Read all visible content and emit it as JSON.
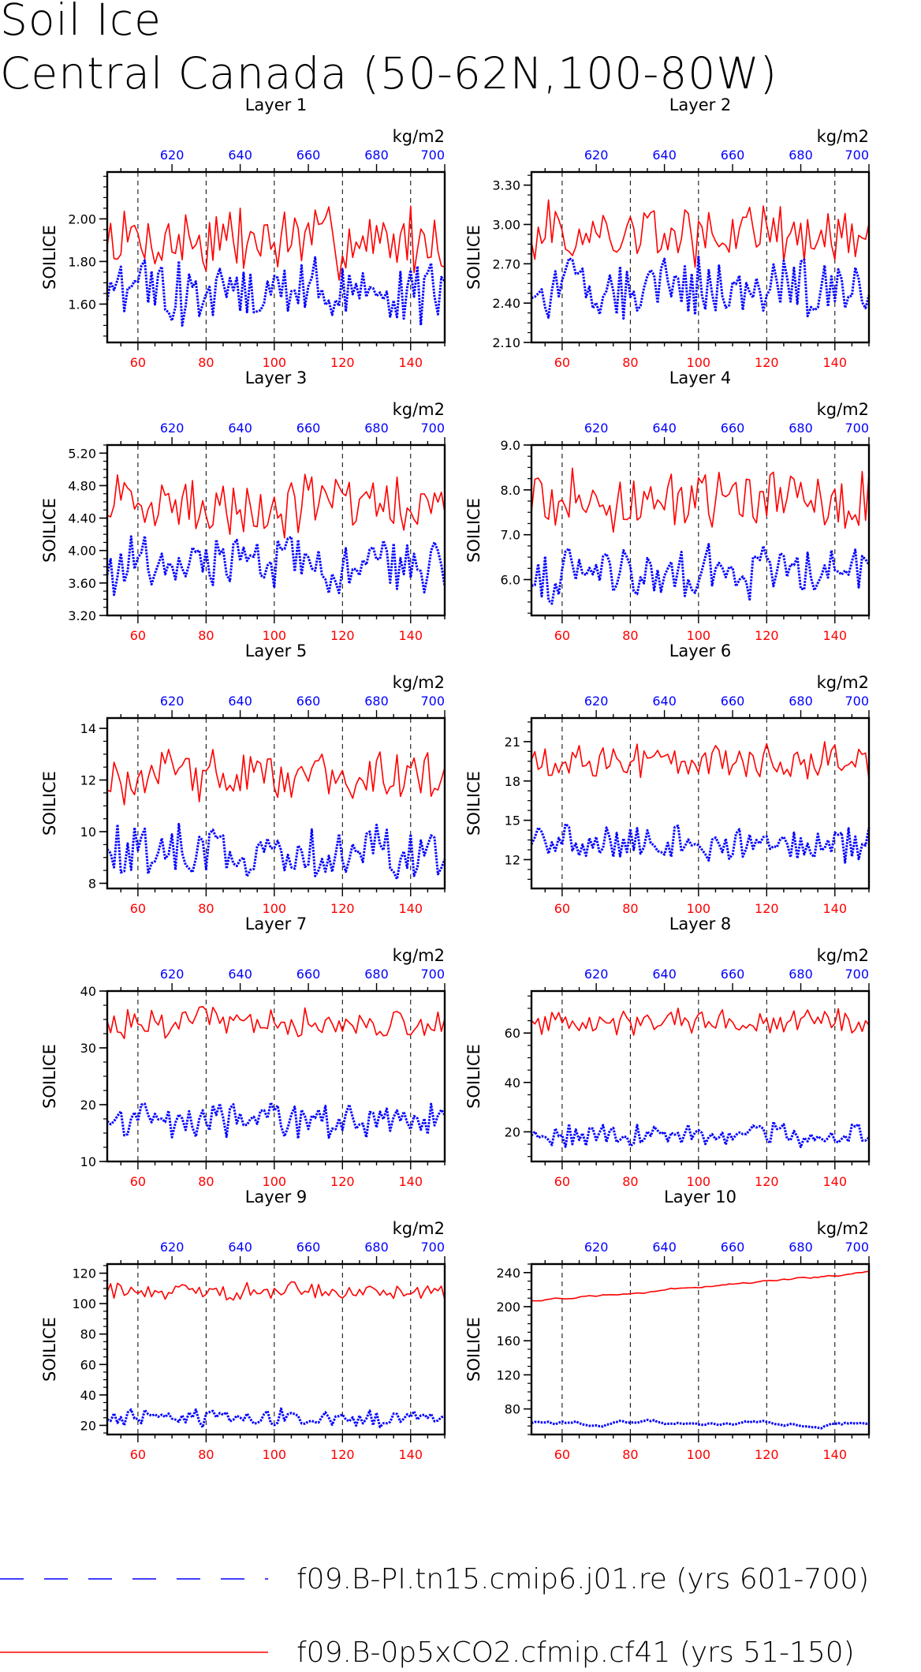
{
  "title": "Soil Ice",
  "subtitle": "Central Canada (50-62N,100-80W)",
  "units_label": "kg/m2",
  "ylabel": "SOILICE",
  "colors": {
    "red": "#ff0000",
    "blue": "#0000ff"
  },
  "legend": [
    {
      "label": "f09.B-PI.tn15.cmip6.j01.re (yrs 601-700)",
      "color": "#0000ff",
      "style": "dashed"
    },
    {
      "label": "f09.B-0p5xCO2.cfmip.cf41 (yrs 51-150)",
      "color": "#ff0000",
      "style": "solid"
    }
  ],
  "chart_data": [
    {
      "type": "line",
      "title": "Layer 1",
      "xlabel_units": "kg/m2",
      "ylabel": "SOILICE",
      "x_bottom_ticks": [
        60,
        80,
        100,
        120,
        140
      ],
      "x_top_ticks": [
        620,
        640,
        660,
        680,
        700
      ],
      "xlim_bottom": [
        51,
        150
      ],
      "xlim_top": [
        601,
        700
      ],
      "ylim": [
        1.42,
        2.22
      ],
      "yticks": [
        "1.60",
        "1.80",
        "2.00"
      ],
      "ytick_values": [
        1.6,
        1.8,
        2.0
      ],
      "series": [
        {
          "name": "f09.B-0p5xCO2.cfmip.cf41 (yrs 51-150)",
          "color": "#ff0000",
          "style": "solid",
          "mean": 1.9,
          "amp": 0.14
        },
        {
          "name": "f09.B-PI.tn15.cmip6.j01.re (yrs 601-700)",
          "color": "#0000ff",
          "style": "dotted",
          "mean": 1.66,
          "amp": 0.13
        }
      ]
    },
    {
      "type": "line",
      "title": "Layer 2",
      "xlabel_units": "kg/m2",
      "ylabel": "SOILICE",
      "x_bottom_ticks": [
        60,
        80,
        100,
        120,
        140
      ],
      "x_top_ticks": [
        620,
        640,
        660,
        680,
        700
      ],
      "xlim_bottom": [
        51,
        150
      ],
      "xlim_top": [
        601,
        700
      ],
      "ylim": [
        2.1,
        3.4
      ],
      "yticks": [
        "2.10",
        "2.40",
        "2.70",
        "3.00",
        "3.30"
      ],
      "ytick_values": [
        2.1,
        2.4,
        2.7,
        3.0,
        3.3
      ],
      "series": [
        {
          "name": "f09.B-0p5xCO2.cfmip.cf41 (yrs 51-150)",
          "color": "#ff0000",
          "style": "solid",
          "mean": 2.92,
          "amp": 0.2
        },
        {
          "name": "f09.B-PI.tn15.cmip6.j01.re (yrs 601-700)",
          "color": "#0000ff",
          "style": "dotted",
          "mean": 2.52,
          "amp": 0.2
        }
      ]
    },
    {
      "type": "line",
      "title": "Layer 3",
      "xlabel_units": "kg/m2",
      "ylabel": "SOILICE",
      "x_bottom_ticks": [
        60,
        80,
        100,
        120,
        140
      ],
      "x_top_ticks": [
        620,
        640,
        660,
        680,
        700
      ],
      "xlim_bottom": [
        51,
        150
      ],
      "xlim_top": [
        601,
        700
      ],
      "ylim": [
        3.2,
        5.3
      ],
      "yticks": [
        "3.20",
        "3.60",
        "4.00",
        "4.40",
        "4.80",
        "5.20"
      ],
      "ytick_values": [
        3.2,
        3.6,
        4.0,
        4.4,
        4.8,
        5.2
      ],
      "series": [
        {
          "name": "f09.B-0p5xCO2.cfmip.cf41 (yrs 51-150)",
          "color": "#ff0000",
          "style": "solid",
          "mean": 4.55,
          "amp": 0.32
        },
        {
          "name": "f09.B-PI.tn15.cmip6.j01.re (yrs 601-700)",
          "color": "#0000ff",
          "style": "dotted",
          "mean": 3.85,
          "amp": 0.3
        }
      ]
    },
    {
      "type": "line",
      "title": "Layer 4",
      "xlabel_units": "kg/m2",
      "ylabel": "SOILICE",
      "x_bottom_ticks": [
        60,
        80,
        100,
        120,
        140
      ],
      "x_top_ticks": [
        620,
        640,
        660,
        680,
        700
      ],
      "xlim_bottom": [
        51,
        150
      ],
      "xlim_top": [
        601,
        700
      ],
      "ylim": [
        5.2,
        9.0
      ],
      "yticks": [
        "6.0",
        "7.0",
        "8.0",
        "9.0"
      ],
      "ytick_values": [
        6.0,
        7.0,
        8.0,
        9.0
      ],
      "series": [
        {
          "name": "f09.B-0p5xCO2.cfmip.cf41 (yrs 51-150)",
          "color": "#ff0000",
          "style": "solid",
          "mean": 7.75,
          "amp": 0.55
        },
        {
          "name": "f09.B-PI.tn15.cmip6.j01.re (yrs 601-700)",
          "color": "#0000ff",
          "style": "dotted",
          "mean": 6.15,
          "amp": 0.5
        }
      ]
    },
    {
      "type": "line",
      "title": "Layer 5",
      "xlabel_units": "kg/m2",
      "ylabel": "SOILICE",
      "x_bottom_ticks": [
        60,
        80,
        100,
        120,
        140
      ],
      "x_top_ticks": [
        620,
        640,
        660,
        680,
        700
      ],
      "xlim_bottom": [
        51,
        150
      ],
      "xlim_top": [
        601,
        700
      ],
      "ylim": [
        7.8,
        14.4
      ],
      "yticks": [
        "8",
        "10",
        "12",
        "14"
      ],
      "ytick_values": [
        8,
        10,
        12,
        14
      ],
      "series": [
        {
          "name": "f09.B-0p5xCO2.cfmip.cf41 (yrs 51-150)",
          "color": "#ff0000",
          "style": "solid",
          "mean": 12.1,
          "amp": 0.9
        },
        {
          "name": "f09.B-PI.tn15.cmip6.j01.re (yrs 601-700)",
          "color": "#0000ff",
          "style": "dotted",
          "mean": 9.2,
          "amp": 0.85
        }
      ]
    },
    {
      "type": "line",
      "title": "Layer 6",
      "xlabel_units": "kg/m2",
      "ylabel": "SOILICE",
      "x_bottom_ticks": [
        60,
        80,
        100,
        120,
        140
      ],
      "x_top_ticks": [
        620,
        640,
        660,
        680,
        700
      ],
      "xlim_bottom": [
        51,
        150
      ],
      "xlim_top": [
        601,
        700
      ],
      "ylim": [
        9.8,
        22.8
      ],
      "yticks": [
        "12",
        "15",
        "18",
        "21"
      ],
      "ytick_values": [
        12,
        15,
        18,
        21
      ],
      "series": [
        {
          "name": "f09.B-0p5xCO2.cfmip.cf41 (yrs 51-150)",
          "color": "#ff0000",
          "style": "solid",
          "mean": 19.4,
          "amp": 1.2
        },
        {
          "name": "f09.B-PI.tn15.cmip6.j01.re (yrs 601-700)",
          "color": "#0000ff",
          "style": "dotted",
          "mean": 13.1,
          "amp": 1.3
        }
      ]
    },
    {
      "type": "line",
      "title": "Layer 7",
      "xlabel_units": "kg/m2",
      "ylabel": "SOILICE",
      "x_bottom_ticks": [
        60,
        80,
        100,
        120,
        140
      ],
      "x_top_ticks": [
        620,
        640,
        660,
        680,
        700
      ],
      "xlim_bottom": [
        51,
        150
      ],
      "xlim_top": [
        601,
        700
      ],
      "ylim": [
        10,
        40
      ],
      "yticks": [
        "10",
        "20",
        "30",
        "40"
      ],
      "ytick_values": [
        10,
        20,
        30,
        40
      ],
      "series": [
        {
          "name": "f09.B-0p5xCO2.cfmip.cf41 (yrs 51-150)",
          "color": "#ff0000",
          "style": "solid",
          "mean": 34.5,
          "amp": 2.3
        },
        {
          "name": "f09.B-PI.tn15.cmip6.j01.re (yrs 601-700)",
          "color": "#0000ff",
          "style": "dotted",
          "mean": 17.2,
          "amp": 2.8
        }
      ]
    },
    {
      "type": "line",
      "title": "Layer 8",
      "xlabel_units": "kg/m2",
      "ylabel": "SOILICE",
      "x_bottom_ticks": [
        60,
        80,
        100,
        120,
        140
      ],
      "x_top_ticks": [
        620,
        640,
        660,
        680,
        700
      ],
      "xlim_bottom": [
        51,
        150
      ],
      "xlim_top": [
        601,
        700
      ],
      "ylim": [
        8,
        77
      ],
      "yticks": [
        "20",
        "40",
        "60"
      ],
      "ytick_values": [
        20,
        40,
        60
      ],
      "series": [
        {
          "name": "f09.B-0p5xCO2.cfmip.cf41 (yrs 51-150)",
          "color": "#ff0000",
          "style": "solid",
          "mean": 65,
          "amp": 4.5
        },
        {
          "name": "f09.B-PI.tn15.cmip6.j01.re (yrs 601-700)",
          "color": "#0000ff",
          "style": "dotted",
          "mean": 19,
          "amp": 4
        }
      ]
    },
    {
      "type": "line",
      "title": "Layer 9",
      "xlabel_units": "kg/m2",
      "ylabel": "SOILICE",
      "x_bottom_ticks": [
        60,
        80,
        100,
        120,
        140
      ],
      "x_top_ticks": [
        620,
        640,
        660,
        680,
        700
      ],
      "xlim_bottom": [
        51,
        150
      ],
      "xlim_top": [
        601,
        700
      ],
      "ylim": [
        14,
        126
      ],
      "yticks": [
        "20",
        "40",
        "60",
        "80",
        "100",
        "120"
      ],
      "ytick_values": [
        20,
        40,
        60,
        80,
        100,
        120
      ],
      "series": [
        {
          "name": "f09.B-0p5xCO2.cfmip.cf41 (yrs 51-150)",
          "color": "#ff0000",
          "style": "solid",
          "mean": 108,
          "amp": 5
        },
        {
          "name": "f09.B-PI.tn15.cmip6.j01.re (yrs 601-700)",
          "color": "#0000ff",
          "style": "dotted",
          "mean": 25,
          "amp": 5
        }
      ]
    },
    {
      "type": "line",
      "title": "Layer 10",
      "xlabel_units": "kg/m2",
      "ylabel": "SOILICE",
      "x_bottom_ticks": [
        60,
        80,
        100,
        120,
        140
      ],
      "x_top_ticks": [
        620,
        640,
        660,
        680,
        700
      ],
      "xlim_bottom": [
        51,
        150
      ],
      "xlim_top": [
        601,
        700
      ],
      "ylim": [
        50,
        250
      ],
      "yticks": [
        "80",
        "120",
        "160",
        "200",
        "240"
      ],
      "ytick_values": [
        80,
        120,
        160,
        200,
        240
      ],
      "series": [
        {
          "name": "f09.B-0p5xCO2.cfmip.cf41 (yrs 51-150)",
          "color": "#ff0000",
          "style": "solid",
          "start": 207,
          "end": 240,
          "amp": 1.5
        },
        {
          "name": "f09.B-PI.tn15.cmip6.j01.re (yrs 601-700)",
          "color": "#0000ff",
          "style": "dotted",
          "mean": 63,
          "amp": 3
        }
      ]
    }
  ]
}
